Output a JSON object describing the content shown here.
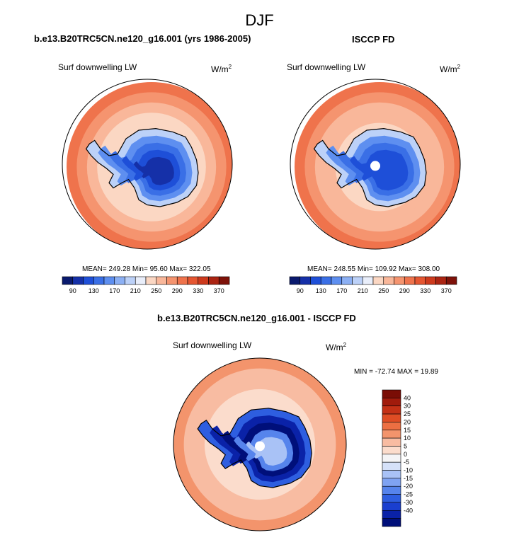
{
  "page": {
    "title": "DJF"
  },
  "panels": [
    {
      "title": "b.e13.B20TRC5CN.ne120_g16.001 (yrs 1986-2005)",
      "field": "Surf downwelling LW",
      "units_base": "W/m",
      "units_exp": "2",
      "stats": "MEAN= 249.28  Min=  95.60  Max= 322.05"
    },
    {
      "title": "ISCCP FD",
      "field": "Surf downwelling LW",
      "units_base": "W/m",
      "units_exp": "2",
      "stats": "MEAN= 248.55  Min= 109.92  Max= 308.00"
    },
    {
      "title": "b.e13.B20TRC5CN.ne120_g16.001 - ISCCP FD",
      "field": "Surf downwelling LW",
      "units_base": "W/m",
      "units_exp": "2",
      "stats": "MIN = -72.74 MAX =  19.89"
    }
  ],
  "colors": {
    "abs_scale": [
      "#0a1a6e",
      "#1530a8",
      "#1e4fd8",
      "#3a6fe6",
      "#5e8ff0",
      "#8cb0f4",
      "#bcd1f8",
      "#e9eefa",
      "#fbd7c3",
      "#f9b79a",
      "#f5946f",
      "#ef734c",
      "#e55631",
      "#cd3a1d",
      "#ab2412",
      "#7e1209"
    ],
    "diff_scale": [
      "#000f7a",
      "#0a22a8",
      "#1a3fcf",
      "#2e5ee0",
      "#5684ec",
      "#7fa3f2",
      "#a9c2f6",
      "#d5e1f9",
      "#f4f4f6",
      "#fbdccc",
      "#f8bca2",
      "#f3946c",
      "#ec6f42",
      "#df4d24",
      "#c43116",
      "#a11b0c",
      "#7a0d05"
    ]
  },
  "chart_data": [
    {
      "type": "heatmap",
      "title": "b.e13.B20TRC5CN.ne120_g16.001 (yrs 1986-2005)",
      "subtitle": "Surf downwelling LW",
      "units": "W/m2",
      "projection": "south polar stereographic",
      "colorbar": {
        "levels": [
          90,
          105,
          120,
          130,
          150,
          170,
          190,
          210,
          230,
          250,
          270,
          290,
          310,
          330,
          350,
          370
        ],
        "tick_labels": [
          "90",
          "130",
          "170",
          "210",
          "250",
          "290",
          "330",
          "370"
        ]
      },
      "stats": {
        "mean": 249.28,
        "min": 95.6,
        "max": 322.05
      }
    },
    {
      "type": "heatmap",
      "title": "ISCCP FD",
      "subtitle": "Surf downwelling LW",
      "units": "W/m2",
      "projection": "south polar stereographic",
      "colorbar": {
        "levels": [
          90,
          105,
          120,
          130,
          150,
          170,
          190,
          210,
          230,
          250,
          270,
          290,
          310,
          330,
          350,
          370
        ],
        "tick_labels": [
          "90",
          "130",
          "170",
          "210",
          "250",
          "290",
          "330",
          "370"
        ]
      },
      "stats": {
        "mean": 248.55,
        "min": 109.92,
        "max": 308.0
      }
    },
    {
      "type": "heatmap",
      "title": "b.e13.B20TRC5CN.ne120_g16.001 - ISCCP FD",
      "subtitle": "Surf downwelling LW",
      "units": "W/m2",
      "projection": "south polar stereographic",
      "colorbar": {
        "levels": [
          40,
          30,
          25,
          20,
          15,
          10,
          5,
          0,
          -5,
          -10,
          -15,
          -20,
          -25,
          -30,
          -40
        ],
        "tick_labels": [
          "40",
          "30",
          "25",
          "20",
          "15",
          "10",
          "5",
          "0",
          "-5",
          "-10",
          "-15",
          "-20",
          "-25",
          "-30",
          "-40"
        ]
      },
      "stats": {
        "min": -72.74,
        "max": 19.89
      }
    }
  ]
}
